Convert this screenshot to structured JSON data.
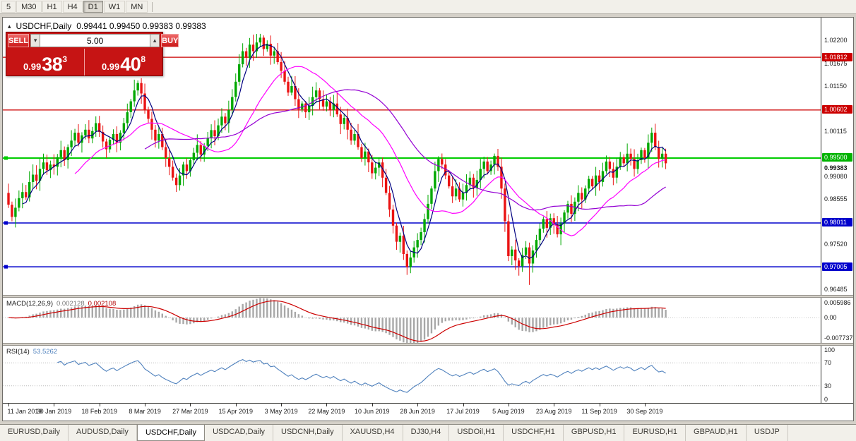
{
  "toolbar": {
    "timeframes": [
      "5",
      "M30",
      "H1",
      "H4",
      "D1",
      "W1",
      "MN"
    ],
    "active": "D1"
  },
  "chart": {
    "title": "USDCHF,Daily",
    "ohlc": "0.99441 0.99450 0.99383 0.99383"
  },
  "trade_panel": {
    "sell_label": "SELL",
    "buy_label": "BUY",
    "volume": "5.00",
    "sell_price": {
      "prefix": "0.99",
      "big": "38",
      "sup": "3"
    },
    "buy_price": {
      "prefix": "0.99",
      "big": "40",
      "sup": "8"
    }
  },
  "icons": {
    "chart_marker": "▴",
    "volume_up": "▴",
    "volume_down": "▾"
  },
  "price_axis": {
    "plain": [
      {
        "text": "1.02200",
        "value": 1.022
      },
      {
        "text": "1.01675",
        "value": 1.01675
      },
      {
        "text": "1.01150",
        "value": 1.0115
      },
      {
        "text": "1.00115",
        "value": 1.00115
      },
      {
        "text": "0.99080",
        "value": 0.9908
      },
      {
        "text": "0.98555",
        "value": 0.98555
      },
      {
        "text": "0.97520",
        "value": 0.9752
      },
      {
        "text": "0.96485",
        "value": 0.96485
      }
    ],
    "badges": [
      {
        "text": "1.01812",
        "value": 1.01812,
        "color": "#cc0000"
      },
      {
        "text": "1.00602",
        "value": 1.00602,
        "color": "#cc0000"
      },
      {
        "text": "0.99500",
        "value": 0.995,
        "color": "#00b300"
      },
      {
        "text": "0.98011",
        "value": 0.98011,
        "color": "#0000cc"
      },
      {
        "text": "0.97005",
        "value": 0.97005,
        "color": "#0000cc"
      }
    ],
    "current": {
      "text": "0.99383",
      "value": 0.99383
    },
    "lines": [
      {
        "value": 1.01812,
        "color": "#cc0000",
        "width": 1.3,
        "handle": false
      },
      {
        "value": 1.00602,
        "color": "#cc0000",
        "width": 1.3,
        "handle": false
      },
      {
        "value": 0.995,
        "color": "#00cc00",
        "width": 2,
        "handle": true
      },
      {
        "value": 0.98011,
        "color": "#0000cc",
        "width": 1.5,
        "handle": true
      },
      {
        "value": 0.97005,
        "color": "#0000cc",
        "width": 1.5,
        "handle": true
      }
    ]
  },
  "macd": {
    "name": "MACD(12,26,9)",
    "value_main": "0.002128",
    "value_signal": "0.002108",
    "axis": [
      {
        "text": "0.005986",
        "value": 0.005986
      },
      {
        "text": "0.00",
        "value": 0
      },
      {
        "text": "-0.007737",
        "value": -0.007737
      }
    ]
  },
  "rsi": {
    "name": "RSI(14)",
    "value": "53.5262",
    "axis": [
      {
        "text": "100",
        "value": 100
      },
      {
        "text": "70",
        "value": 70
      },
      {
        "text": "30",
        "value": 30
      },
      {
        "text": "0",
        "value": 0
      }
    ]
  },
  "date_axis": [
    {
      "text": "11 Jan 2019",
      "bar": 0
    },
    {
      "text": "30 Jan 2019",
      "bar": 13
    },
    {
      "text": "18 Feb 2019",
      "bar": 26
    },
    {
      "text": "8 Mar 2019",
      "bar": 39
    },
    {
      "text": "27 Mar 2019",
      "bar": 52
    },
    {
      "text": "15 Apr 2019",
      "bar": 65
    },
    {
      "text": "3 May 2019",
      "bar": 78
    },
    {
      "text": "22 May 2019",
      "bar": 91
    },
    {
      "text": "10 Jun 2019",
      "bar": 104
    },
    {
      "text": "28 Jun 2019",
      "bar": 117
    },
    {
      "text": "17 Jul 2019",
      "bar": 130
    },
    {
      "text": "5 Aug 2019",
      "bar": 143
    },
    {
      "text": "23 Aug 2019",
      "bar": 156
    },
    {
      "text": "11 Sep 2019",
      "bar": 169
    },
    {
      "text": "30 Sep 2019",
      "bar": 182
    }
  ],
  "tabs": {
    "items": [
      "EURUSD,Daily",
      "AUDUSD,Daily",
      "USDCHF,Daily",
      "USDCAD,Daily",
      "USDCNH,Daily",
      "XAUUSD,H4",
      "DJ30,H4",
      "USDOil,H1",
      "USDCHF,H1",
      "GBPUSD,H1",
      "EURUSD,H1",
      "GBPAUD,H1",
      "USDJP"
    ],
    "active": "USDCHF,Daily"
  },
  "colors": {
    "candle_up": "#00a800",
    "candle_down": "#ea1313",
    "macd_hist": "#a8a8a8",
    "macd_signal": "#cc0000",
    "rsi_line": "#4f81bd"
  },
  "chart_data": {
    "type": "candlestick",
    "symbol": "USDCHF",
    "timeframe": "Daily",
    "first_open": 0.987,
    "price_range": {
      "min": 0.9636,
      "max": 1.0272
    },
    "macd_range": {
      "min": -0.008,
      "max": 0.0063
    },
    "closes": [
      0.9843,
      0.9815,
      0.9836,
      0.9858,
      0.9872,
      0.986,
      0.9895,
      0.9912,
      0.9898,
      0.9925,
      0.994,
      0.9922,
      0.9935,
      0.993,
      0.9952,
      0.9968,
      0.9945,
      0.9975,
      0.999,
      1.0008,
      0.9985,
      1.0002,
      1.0015,
      0.9995,
      1.0012,
      1.003,
      1.001,
      0.9988,
      0.997,
      0.9992,
      1.0005,
      0.9985,
      1.0008,
      1.003,
      1.0055,
      1.008,
      1.0105,
      1.0122,
      1.0098,
      1.006,
      1.004,
      1.0015,
      0.999,
      1.0005,
      0.9975,
      0.995,
      0.993,
      0.9905,
      0.9888,
      0.991,
      0.9935,
      0.992,
      0.9945,
      0.9962,
      0.998,
      0.9958,
      0.9978,
      0.9996,
      1.0014,
      1.0,
      1.0025,
      1.0045,
      1.003,
      1.006,
      1.009,
      1.0125,
      1.0165,
      1.0195,
      1.018,
      1.021,
      1.0195,
      1.0215,
      1.0226,
      1.02,
      1.0212,
      1.0185,
      1.0195,
      1.017,
      1.015,
      1.0125,
      1.01,
      1.0115,
      1.0085,
      1.0062,
      1.0075,
      1.0055,
      1.007,
      1.009,
      1.0105,
      1.0085,
      1.0068,
      1.008,
      1.006,
      1.0075,
      1.005,
      1.0028,
      1.0042,
      1.0015,
      0.999,
      1.0005,
      0.9975,
      0.995,
      0.9965,
      0.994,
      0.9915,
      0.9928,
      0.994,
      0.9905,
      0.987,
      0.9832,
      0.9795,
      0.9758,
      0.9772,
      0.973,
      0.97,
      0.9722,
      0.9745,
      0.9762,
      0.978,
      0.981,
      0.9845,
      0.988,
      0.992,
      0.9948,
      0.9935,
      0.991,
      0.9885,
      0.9862,
      0.988,
      0.9855,
      0.987,
      0.9888,
      0.9905,
      0.9882,
      0.99,
      0.9925,
      0.9942,
      0.992,
      0.9935,
      0.9955,
      0.993,
      0.988,
      0.9805,
      0.9725,
      0.974,
      0.9715,
      0.9702,
      0.9728,
      0.9745,
      0.9708,
      0.9738,
      0.9762,
      0.9788,
      0.981,
      0.979,
      0.9812,
      0.9798,
      0.9775,
      0.98,
      0.9825,
      0.9845,
      0.9822,
      0.985,
      0.987,
      0.9855,
      0.988,
      0.9902,
      0.9885,
      0.991,
      0.9895,
      0.992,
      0.9942,
      0.9925,
      0.9905,
      0.993,
      0.9952,
      0.9938,
      0.996,
      0.9948,
      0.9925,
      0.9945,
      0.9968,
      0.995,
      0.9985,
      1.0008,
      0.9975,
      0.9948,
      0.996,
      0.9938
    ],
    "spikes": [
      {
        "i": 72,
        "high": 1.0235
      },
      {
        "i": 114,
        "low": 0.9682
      },
      {
        "i": 149,
        "low": 0.9659
      }
    ],
    "indicators": {
      "sma": [
        {
          "period": 5,
          "color": "#000080"
        },
        {
          "period": 20,
          "color": "#ff00ff"
        },
        {
          "period": 40,
          "color": "#9400d3"
        }
      ],
      "macd": {
        "fast": 12,
        "slow": 26,
        "signal": 9
      },
      "rsi": {
        "period": 14,
        "levels": [
          70,
          30
        ]
      }
    }
  }
}
